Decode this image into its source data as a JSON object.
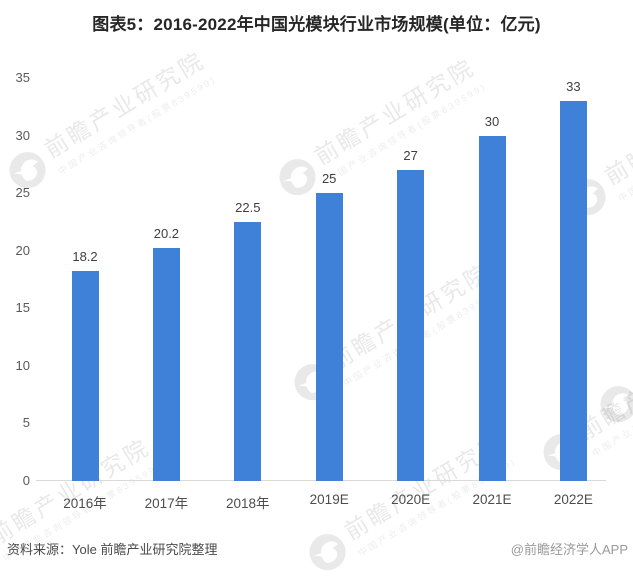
{
  "title": "图表5：2016-2022年中国光模块行业市场规模(单位：亿元)",
  "chart_data": {
    "type": "bar",
    "categories": [
      "2016年",
      "2017年",
      "2018年",
      "2019E",
      "2020E",
      "2021E",
      "2022E"
    ],
    "values": [
      18.2,
      20.2,
      22.5,
      25,
      27,
      30,
      33
    ],
    "value_labels": [
      "18.2",
      "20.2",
      "22.5",
      "25",
      "27",
      "30",
      "33"
    ],
    "title": "图表5：2016-2022年中国光模块行业市场规模(单位：亿元)",
    "xlabel": "",
    "ylabel": "",
    "ylim": [
      0,
      35
    ],
    "yticks": [
      0,
      5,
      10,
      15,
      20,
      25,
      30,
      35
    ],
    "bar_color": "#3f80d9",
    "grid": false,
    "legend": false
  },
  "footer": {
    "source": "资料来源：Yole 前瞻产业研究院整理",
    "credit": "@前瞻经济学人APP"
  },
  "watermark": {
    "icon": "qianzhan-bird-logo-icon",
    "text": "前瞻产业研究院",
    "subtext": "中国产业咨询领导者(股票839599)"
  },
  "colors": {
    "bar": "#3f80d9",
    "axis_line": "#d9d9d9",
    "title_text": "#262626",
    "tick_text": "#595959",
    "value_text": "#404040",
    "source_text": "#4a4a4a",
    "credit_text": "#999999",
    "watermark": "#e8e8e8"
  }
}
